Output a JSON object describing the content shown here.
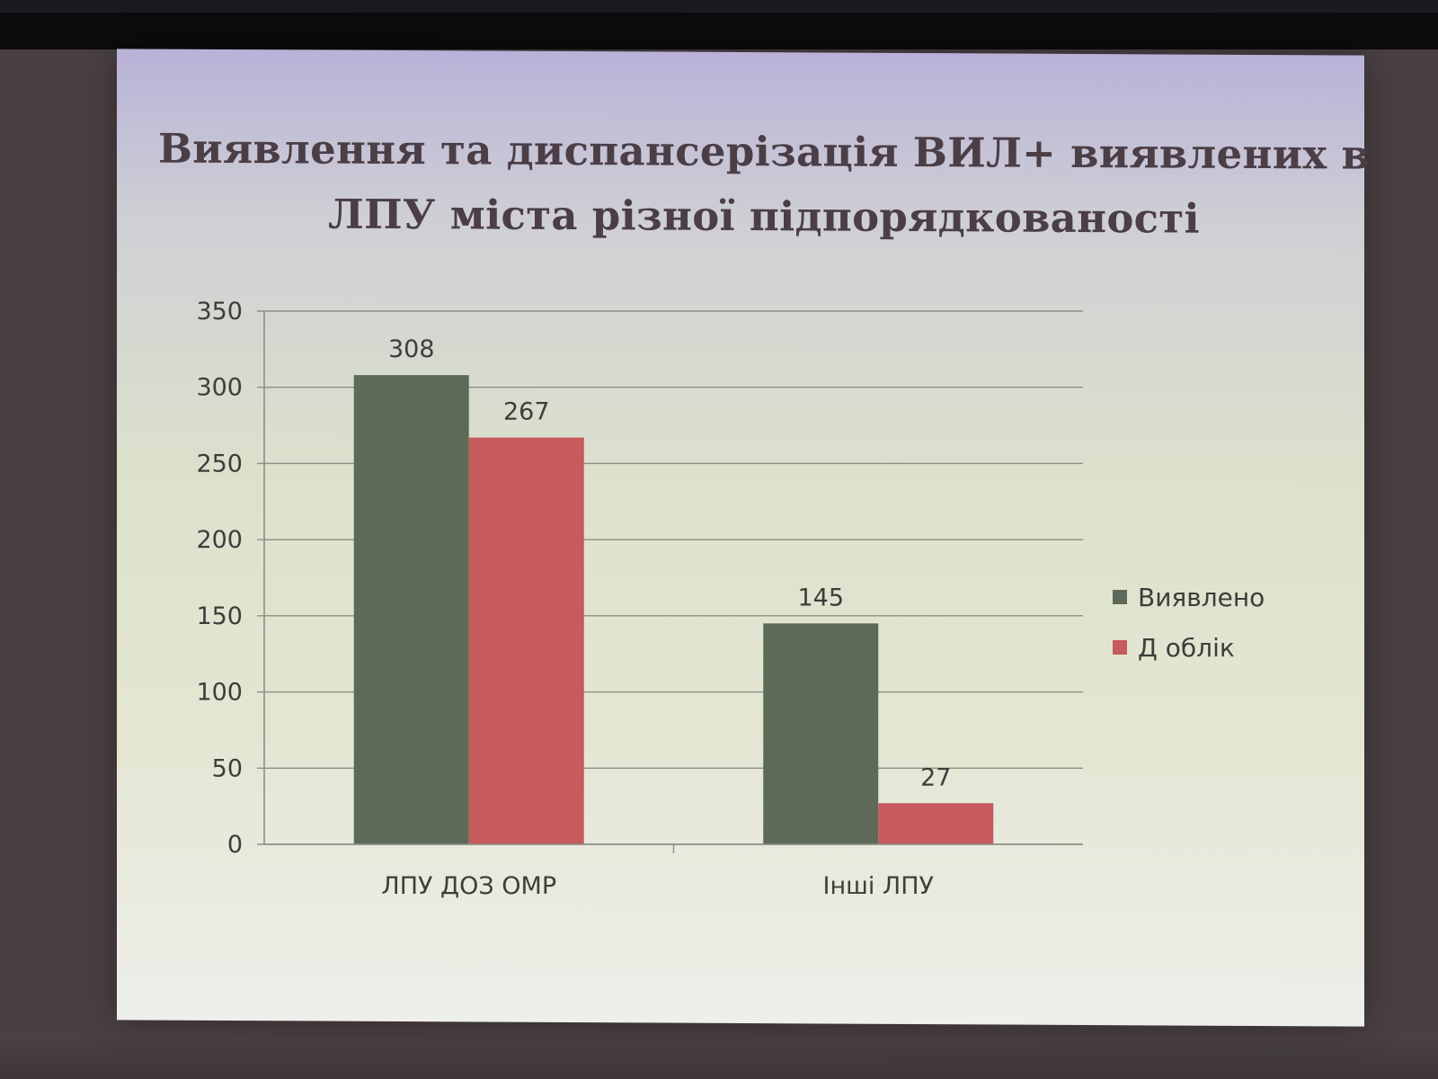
{
  "chart_data": {
    "type": "bar",
    "title": "Виявлення та диспансерізація ВИЛ+ виявлених в ЛПУ міста різної підпорядкованості",
    "title_lines": [
      "Виявлення та диспансерізація ВИЛ+ виявлених в",
      "ЛПУ міста різної підпорядкованості"
    ],
    "categories": [
      "ЛПУ ДОЗ ОМР",
      "Інші ЛПУ"
    ],
    "series": [
      {
        "name": "Виявлено",
        "color": "#5d6a58",
        "values": [
          308,
          145
        ]
      },
      {
        "name": "Д облік",
        "color": "#c65a5c",
        "values": [
          267,
          27
        ]
      }
    ],
    "y_ticks": [
      "0",
      "50",
      "100",
      "150",
      "200",
      "250",
      "300",
      "350"
    ],
    "ylim": [
      0,
      350
    ],
    "grid": true,
    "legend_position": "right",
    "colors": {
      "axis_text": "#3f3d3a",
      "gridline": "#8b8f86",
      "title": "#4b3e46"
    }
  }
}
